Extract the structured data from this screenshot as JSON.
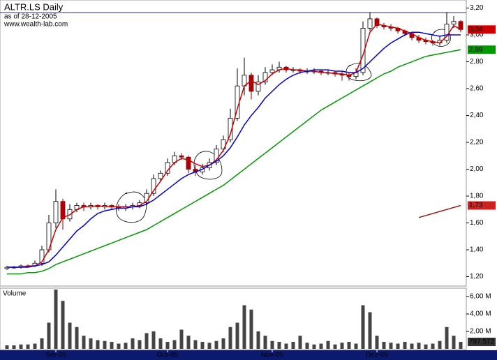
{
  "chart_data": [
    {
      "type": "candlestick",
      "title": "ALTR.LS Daily",
      "subtitle": "as of 28-12-2005",
      "source": "www.wealth-lab.com",
      "categories": [
        null,
        null,
        null,
        null,
        null,
        null,
        null,
        "Set-05",
        null,
        null,
        null,
        null,
        null,
        null,
        null,
        null,
        null,
        null,
        null,
        null,
        null,
        null,
        null,
        "Out-05",
        null,
        null,
        null,
        null,
        null,
        null,
        null,
        null,
        null,
        null,
        null,
        null,
        null,
        null,
        "Nov-05",
        null,
        null,
        null,
        null,
        null,
        null,
        null,
        null,
        null,
        null,
        null,
        null,
        null,
        null,
        "Dez-05",
        null,
        null,
        null,
        null,
        null,
        null,
        null,
        null,
        null,
        null,
        null,
        null
      ],
      "open": [
        1.26,
        1.27,
        1.27,
        1.28,
        1.28,
        1.3,
        1.4,
        1.6,
        1.76,
        1.63,
        1.7,
        1.73,
        1.72,
        1.73,
        1.72,
        1.73,
        1.72,
        1.71,
        1.72,
        1.73,
        1.75,
        1.82,
        1.93,
        1.97,
        2.05,
        2.1,
        2.09,
        2.0,
        1.98,
        2.01,
        2.05,
        2.15,
        2.22,
        2.38,
        2.62,
        2.7,
        2.58,
        2.65,
        2.72,
        2.74,
        2.76,
        2.74,
        2.74,
        2.73,
        2.73,
        2.73,
        2.72,
        2.72,
        2.71,
        2.7,
        2.69,
        2.72,
        3.05,
        3.12,
        3.07,
        3.06,
        3.05,
        3.03,
        3.01,
        2.98,
        2.96,
        2.95,
        2.94,
        2.96,
        3.08,
        3.1
      ],
      "high": [
        1.28,
        1.28,
        1.29,
        1.29,
        1.32,
        1.43,
        1.66,
        1.85,
        1.78,
        1.74,
        1.75,
        1.75,
        1.75,
        1.74,
        1.75,
        1.74,
        1.74,
        1.74,
        1.75,
        1.77,
        1.85,
        1.96,
        1.99,
        2.08,
        2.13,
        2.12,
        2.1,
        2.03,
        2.04,
        2.08,
        2.18,
        2.25,
        2.45,
        2.75,
        2.83,
        2.72,
        2.7,
        2.76,
        2.78,
        2.8,
        2.77,
        2.76,
        2.75,
        2.75,
        2.75,
        2.74,
        2.74,
        2.73,
        2.73,
        2.72,
        2.75,
        3.1,
        3.17,
        3.13,
        3.09,
        3.08,
        3.06,
        3.04,
        3.02,
        3.0,
        2.98,
        2.96,
        2.99,
        3.17,
        3.14,
        3.11
      ],
      "low": [
        1.25,
        1.26,
        1.26,
        1.27,
        1.27,
        1.28,
        1.38,
        1.56,
        1.55,
        1.61,
        1.68,
        1.69,
        1.7,
        1.7,
        1.7,
        1.7,
        1.69,
        1.69,
        1.7,
        1.71,
        1.73,
        1.8,
        1.91,
        1.95,
        2.03,
        2.07,
        1.97,
        1.95,
        1.96,
        1.99,
        2.03,
        2.13,
        2.2,
        2.36,
        2.55,
        2.52,
        2.55,
        2.63,
        2.7,
        2.72,
        2.72,
        2.72,
        2.71,
        2.71,
        2.71,
        2.7,
        2.7,
        2.69,
        2.66,
        2.66,
        2.67,
        2.7,
        3.03,
        3.05,
        3.04,
        3.03,
        3.01,
        2.99,
        2.96,
        2.94,
        2.93,
        2.92,
        2.92,
        2.94,
        3.05,
        3.02
      ],
      "close": [
        1.27,
        1.27,
        1.28,
        1.28,
        1.3,
        1.4,
        1.6,
        1.76,
        1.63,
        1.7,
        1.73,
        1.72,
        1.73,
        1.72,
        1.73,
        1.72,
        1.71,
        1.72,
        1.73,
        1.75,
        1.82,
        1.93,
        1.97,
        2.05,
        2.1,
        2.09,
        2.0,
        1.98,
        2.01,
        2.05,
        2.15,
        2.22,
        2.38,
        2.62,
        2.7,
        2.58,
        2.65,
        2.72,
        2.74,
        2.76,
        2.74,
        2.74,
        2.73,
        2.73,
        2.73,
        2.72,
        2.72,
        2.71,
        2.7,
        2.69,
        2.72,
        3.05,
        3.12,
        3.07,
        3.06,
        3.05,
        3.03,
        3.01,
        2.98,
        2.96,
        2.95,
        2.94,
        2.96,
        3.08,
        3.1,
        3.04
      ],
      "series": [
        {
          "color": "#cc0000",
          "values": [
            1.27,
            1.27,
            1.27,
            1.28,
            1.28,
            1.31,
            1.4,
            1.55,
            1.64,
            1.66,
            1.7,
            1.72,
            1.72,
            1.73,
            1.72,
            1.72,
            1.72,
            1.72,
            1.72,
            1.73,
            1.76,
            1.84,
            1.91,
            1.99,
            2.05,
            2.08,
            2.07,
            2.04,
            2.02,
            2.03,
            2.07,
            2.14,
            2.26,
            2.45,
            2.62,
            2.66,
            2.63,
            2.66,
            2.71,
            2.74,
            2.75,
            2.74,
            2.74,
            2.73,
            2.73,
            2.72,
            2.72,
            2.71,
            2.71,
            2.7,
            2.72,
            2.85,
            3.02,
            3.08,
            3.07,
            3.06,
            3.05,
            3.03,
            3.01,
            2.98,
            2.96,
            2.95,
            2.94,
            2.99,
            3.07,
            3.04
          ]
        },
        {
          "color": "#0000dd",
          "values": [
            1.27,
            1.27,
            1.27,
            1.27,
            1.28,
            1.29,
            1.31,
            1.36,
            1.42,
            1.48,
            1.54,
            1.58,
            1.63,
            1.67,
            1.69,
            1.7,
            1.71,
            1.71,
            1.72,
            1.72,
            1.74,
            1.77,
            1.81,
            1.85,
            1.89,
            1.93,
            1.96,
            1.98,
            2.0,
            2.03,
            2.06,
            2.1,
            2.16,
            2.24,
            2.33,
            2.4,
            2.46,
            2.53,
            2.58,
            2.63,
            2.67,
            2.7,
            2.72,
            2.73,
            2.74,
            2.74,
            2.74,
            2.73,
            2.73,
            2.72,
            2.72,
            2.75,
            2.8,
            2.85,
            2.9,
            2.94,
            2.97,
            3.0,
            3.02,
            3.02,
            3.01,
            3.0,
            2.99,
            3.0,
            3.0,
            3.0
          ]
        },
        {
          "color": "#009900",
          "values": [
            1.22,
            1.22,
            1.22,
            1.23,
            1.23,
            1.24,
            1.26,
            1.29,
            1.31,
            1.33,
            1.35,
            1.37,
            1.39,
            1.41,
            1.43,
            1.45,
            1.47,
            1.49,
            1.51,
            1.53,
            1.55,
            1.58,
            1.61,
            1.64,
            1.67,
            1.7,
            1.73,
            1.76,
            1.79,
            1.82,
            1.85,
            1.88,
            1.92,
            1.96,
            2.0,
            2.04,
            2.08,
            2.12,
            2.16,
            2.2,
            2.24,
            2.28,
            2.32,
            2.36,
            2.4,
            2.44,
            2.47,
            2.5,
            2.53,
            2.56,
            2.59,
            2.62,
            2.65,
            2.68,
            2.71,
            2.73,
            2.76,
            2.78,
            2.8,
            2.82,
            2.84,
            2.85,
            2.86,
            2.87,
            2.88,
            2.89
          ]
        }
      ],
      "trend": {
        "color": "#991a1a",
        "x": [
          59,
          65
        ],
        "values": [
          1.64,
          1.73
        ]
      },
      "markers": [
        {
          "value": 3.04,
          "label": "3,04",
          "color": "#cc0000"
        },
        {
          "value": 2.89,
          "label": "2,89",
          "color": "#009900"
        },
        {
          "value": 1.73,
          "label": "1,73",
          "color": "#cc2222"
        }
      ],
      "ylim": [
        1.13,
        3.26
      ],
      "yticks": [
        {
          "value": 1.2,
          "label": "1,20"
        },
        {
          "value": 1.4,
          "label": "1,40"
        },
        {
          "value": 1.6,
          "label": "1,60"
        },
        {
          "value": 1.8,
          "label": "1,80"
        },
        {
          "value": 2.0,
          "label": "2,00"
        },
        {
          "value": 2.2,
          "label": "2,20"
        },
        {
          "value": 2.4,
          "label": "2,40"
        },
        {
          "value": 2.6,
          "label": "2,60"
        },
        {
          "value": 2.8,
          "label": "2,80"
        },
        {
          "value": 3.0,
          "label": "3,00"
        },
        {
          "value": 3.2,
          "label": "3,20"
        }
      ]
    },
    {
      "type": "bar",
      "title": "Volume",
      "color": "#444444",
      "values": [
        0.4,
        0.4,
        0.5,
        0.5,
        0.6,
        1.2,
        3.0,
        6.8,
        5.5,
        3.0,
        2.5,
        1.5,
        1.2,
        1.0,
        0.9,
        0.8,
        0.6,
        0.7,
        1.2,
        1.0,
        1.8,
        2.0,
        1.2,
        0.8,
        1.0,
        2.2,
        1.5,
        1.0,
        0.8,
        0.7,
        0.9,
        1.2,
        2.5,
        3.0,
        5.0,
        4.5,
        2.0,
        1.5,
        0.9,
        0.8,
        0.6,
        0.8,
        1.5,
        0.7,
        0.5,
        0.6,
        0.9,
        0.5,
        0.7,
        0.8,
        0.6,
        5.0,
        4.2,
        1.5,
        0.8,
        0.7,
        0.6,
        0.8,
        0.6,
        0.7,
        0.5,
        0.6,
        0.9,
        2.5,
        1.5,
        0.797572
      ],
      "markers": [
        {
          "value": 0.797572,
          "label": "797.572",
          "color": "#333333"
        }
      ],
      "ylim": [
        0,
        6.96
      ],
      "yticks": [
        {
          "value": 2,
          "label": "2,00 M"
        },
        {
          "value": 4,
          "label": "4,00 M"
        },
        {
          "value": 6,
          "label": "6,00 M"
        }
      ]
    }
  ]
}
